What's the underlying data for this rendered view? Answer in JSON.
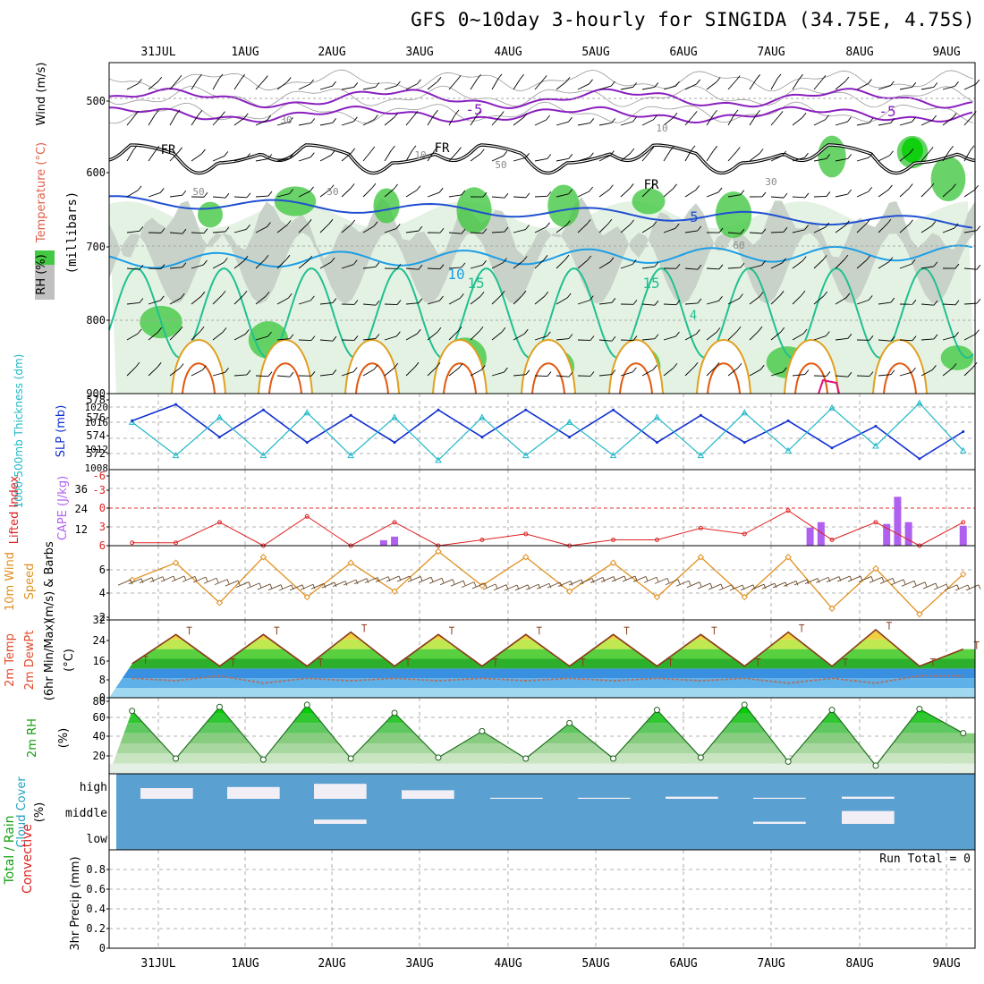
{
  "title": "GFS 0~10day 3-hourly for SINGIDA (34.75E, 4.75S)",
  "dates": [
    "31JUL",
    "1AUG",
    "2AUG",
    "3AUG",
    "4AUG",
    "5AUG",
    "6AUG",
    "7AUG",
    "8AUG",
    "9AUG"
  ],
  "colors": {
    "rh_green": "#43c843",
    "rh_light": "#e4f2e4",
    "rh_grey": "#c8d2c8",
    "wind_purple": "#8a1fbf",
    "fr_black": "#000000",
    "t5_blue": "#2050d0",
    "t10_sky": "#1c9ee6",
    "t15_teal": "#20c090",
    "t_orange": "#e0a020",
    "t_red": "#e05a10",
    "t_magenta": "#e0107a",
    "slp_blue": "#1030d0",
    "thick_cyan": "#20b8c8",
    "li_red": "#e02020",
    "cape_purple": "#b060f0",
    "wind_orange": "#e09020",
    "barb_brown": "#6a4a2a",
    "cloud_blue": "#5aa0d0",
    "cloud_white": "#f2eef6",
    "ref_red": "#e03030"
  },
  "panels": {
    "upper_air": {
      "ylabel_wind": "Wind (m/s)",
      "ylabel_temp": "Temperature (°C)",
      "ylabel_rh": "RH (%)",
      "ylabel_mb": "(millibars)",
      "yticks": [
        "500",
        "600",
        "700",
        "800",
        "900"
      ],
      "labels": {
        "m5a": "-5",
        "m5b": "-5",
        "fr1": "FR",
        "fr2": "FR",
        "fr3": "FR",
        "p5": "5",
        "p10": "10",
        "p15a": "15",
        "p15b": "15",
        "p4": "4",
        "g30": "30",
        "g10a": "10",
        "g10b": "10",
        "g30b": "30",
        "g50a": "50",
        "g50b": "50",
        "g50c": "50",
        "g60": "60"
      }
    },
    "slp": {
      "ylabel_thick": "1000-500mb Thickness (dm)",
      "ylabel_slp": "SLP (mb)",
      "thick_ticks": [
        "578",
        "576",
        "574",
        "572"
      ],
      "slp_ticks": [
        "1020",
        "1016",
        "1012",
        "1008"
      ]
    },
    "cape": {
      "ylabel_li": "Lifted Index",
      "ylabel_cape": "CAPE (J/kg)",
      "li_ticks": [
        "-6",
        "-3",
        "0",
        "3",
        "6"
      ],
      "cape_ticks": [
        "36",
        "24",
        "12"
      ]
    },
    "wind10": {
      "ylabel1": "10m Wind",
      "ylabel2": "Speed",
      "ylabel3": "(m/s) & Barbs",
      "yticks": [
        "6",
        "4",
        "2"
      ]
    },
    "temp2m": {
      "ylabel1": "2m Temp",
      "ylabel2": "2m DewPt",
      "ylabel3": "(6hr Min/Max)",
      "ylabel4": "(°C)",
      "yticks": [
        "32",
        "24",
        "16",
        "8",
        "0"
      ]
    },
    "rh2m": {
      "ylabel1": "2m RH",
      "ylabel2": "(%)",
      "yticks": [
        "80",
        "60",
        "40",
        "20"
      ]
    },
    "cloud": {
      "ylabel1": "Cloud Cover",
      "ylabel2": "(%)",
      "levels": [
        "high",
        "middle",
        "low"
      ]
    },
    "precip": {
      "ylabel1": "Total / Rain",
      "ylabel2": "Convective",
      "ylabel3": "3hr Precip (mm)",
      "yticks": [
        "0.8",
        "0.6",
        "0.4",
        "0.2",
        "0"
      ],
      "run_total": "Run Total = 0"
    }
  },
  "chart_data": [
    {
      "type": "line",
      "panel": "1000-500mb Thickness & SLP",
      "x": [
        "31JUL 00",
        "31JUL 12",
        "1AUG 00",
        "1AUG 12",
        "2AUG 00",
        "2AUG 12",
        "3AUG 00",
        "3AUG 12",
        "4AUG 00",
        "4AUG 12",
        "5AUG 00",
        "5AUG 12",
        "6AUG 00",
        "6AUG 12",
        "7AUG 00",
        "7AUG 12",
        "8AUG 00",
        "8AUG 12",
        "9AUG 00",
        "9AUG 12"
      ],
      "series": [
        {
          "name": "SLP (mb)",
          "values": [
            1017,
            1020,
            1014,
            1019,
            1013,
            1018,
            1013,
            1019,
            1014,
            1019,
            1014,
            1019,
            1013,
            1018,
            1013,
            1017,
            1012,
            1016,
            1010,
            1015
          ]
        },
        {
          "name": "1000-500mb Thickness (dm)",
          "values": [
            575.5,
            572,
            576,
            572,
            576.5,
            572,
            576,
            571.5,
            576,
            572,
            575.5,
            572,
            576,
            572,
            576.5,
            572.5,
            577,
            573,
            577.5,
            572.5
          ]
        }
      ],
      "ylim_slp": [
        1008,
        1022
      ],
      "ylim_thick": [
        570.5,
        578.5
      ]
    },
    {
      "type": "bar",
      "panel": "CAPE & Lifted Index",
      "categories": [
        "2AUG 15",
        "2AUG 18",
        "7AUG 12",
        "7AUG 15",
        "8AUG 09",
        "8AUG 12",
        "8AUG 15",
        "9AUG 06"
      ],
      "series": [
        {
          "name": "CAPE (J/kg)",
          "values": [
            3,
            5,
            10,
            13,
            12,
            27,
            13,
            11
          ]
        }
      ],
      "li_x": [
        "31JUL 00",
        "31JUL 12",
        "1AUG 00",
        "1AUG 12",
        "2AUG 00",
        "2AUG 12",
        "3AUG 00",
        "3AUG 12",
        "4AUG 00",
        "4AUG 12",
        "5AUG 00",
        "5AUG 12",
        "6AUG 00",
        "6AUG 12",
        "7AUG 00",
        "7AUG 12",
        "8AUG 00",
        "8AUG 12",
        "9AUG 00",
        "9AUG 12"
      ],
      "li_values": [
        5.5,
        5.5,
        2,
        6,
        1,
        6,
        2,
        6,
        5,
        4,
        6,
        5,
        5,
        3,
        4,
        0,
        5,
        2,
        6,
        2
      ],
      "ylim_li": [
        6,
        -7
      ],
      "ylim_cape": [
        0,
        42
      ]
    },
    {
      "type": "line",
      "panel": "10m Wind Speed",
      "x": [
        "31JUL 00",
        "31JUL 12",
        "1AUG 00",
        "1AUG 12",
        "2AUG 00",
        "2AUG 12",
        "3AUG 00",
        "3AUG 12",
        "4AUG 00",
        "4AUG 12",
        "5AUG 00",
        "5AUG 12",
        "6AUG 00",
        "6AUG 12",
        "7AUG 00",
        "7AUG 12",
        "8AUG 00",
        "8AUG 12",
        "9AUG 00",
        "9AUG 12"
      ],
      "series": [
        {
          "name": "Speed (m/s)",
          "values": [
            5,
            6.5,
            3,
            7,
            3.5,
            6.5,
            4,
            7.5,
            4.5,
            7,
            4,
            6.5,
            3.5,
            7,
            3.5,
            7,
            2.5,
            6,
            2,
            5.5
          ]
        }
      ],
      "ylim": [
        1.5,
        8
      ]
    },
    {
      "type": "area",
      "panel": "2m Temp / DewPt",
      "x": [
        "31JUL 00",
        "31JUL 12",
        "1AUG 00",
        "1AUG 12",
        "2AUG 00",
        "2AUG 12",
        "3AUG 00",
        "3AUG 12",
        "4AUG 00",
        "4AUG 12",
        "5AUG 00",
        "5AUG 12",
        "6AUG 00",
        "6AUG 12",
        "7AUG 00",
        "7AUG 12",
        "8AUG 00",
        "8AUG 12",
        "9AUG 00",
        "9AUG 12"
      ],
      "series": [
        {
          "name": "2m Temp (°C)",
          "values": [
            14,
            26,
            13,
            26,
            13,
            27,
            13,
            26,
            13,
            26,
            13,
            26,
            13,
            26,
            13,
            27,
            13,
            28,
            13,
            20
          ]
        },
        {
          "name": "2m DewPt (°C)",
          "values": [
            8,
            7,
            9,
            6,
            8,
            7,
            8,
            7,
            8,
            7,
            8,
            7,
            8,
            7,
            8,
            6,
            8,
            6,
            9,
            9
          ]
        }
      ],
      "ylim": [
        0,
        32
      ]
    },
    {
      "type": "area",
      "panel": "2m RH",
      "x": [
        "31JUL 00",
        "31JUL 12",
        "1AUG 00",
        "1AUG 12",
        "2AUG 00",
        "2AUG 12",
        "3AUG 00",
        "3AUG 12",
        "4AUG 00",
        "4AUG 12",
        "5AUG 00",
        "5AUG 12",
        "6AUG 00",
        "6AUG 12",
        "7AUG 00",
        "7AUG 12",
        "8AUG 00",
        "8AUG 12",
        "9AUG 00",
        "9AUG 12"
      ],
      "series": [
        {
          "name": "2m RH (%)",
          "values": [
            72,
            25,
            76,
            24,
            78,
            25,
            70,
            26,
            52,
            25,
            60,
            25,
            73,
            26,
            78,
            22,
            73,
            18,
            74,
            50
          ]
        }
      ],
      "ylim": [
        10,
        85
      ]
    },
    {
      "type": "bar",
      "panel": "Cloud Cover",
      "categories": [
        "31JUL",
        "1AUG",
        "2AUG",
        "3AUG",
        "4AUG",
        "5AUG",
        "6AUG",
        "7AUG",
        "8AUG",
        "9AUG"
      ],
      "series": [
        {
          "name": "high (%)",
          "values": [
            50,
            55,
            70,
            40,
            5,
            5,
            10,
            5,
            10,
            0
          ]
        },
        {
          "name": "middle (%)",
          "values": [
            0,
            0,
            20,
            0,
            0,
            0,
            0,
            10,
            60,
            0
          ]
        },
        {
          "name": "low (%)",
          "values": [
            0,
            0,
            0,
            0,
            0,
            0,
            0,
            0,
            0,
            0
          ]
        }
      ]
    },
    {
      "type": "bar",
      "panel": "3hr Precip",
      "categories": [
        "31JUL",
        "1AUG",
        "2AUG",
        "3AUG",
        "4AUG",
        "5AUG",
        "6AUG",
        "7AUG",
        "8AUG",
        "9AUG"
      ],
      "series": [
        {
          "name": "Total / Rain (mm)",
          "values": [
            0,
            0,
            0,
            0,
            0,
            0,
            0,
            0,
            0,
            0
          ]
        }
      ],
      "ylim": [
        0,
        1
      ]
    }
  ]
}
